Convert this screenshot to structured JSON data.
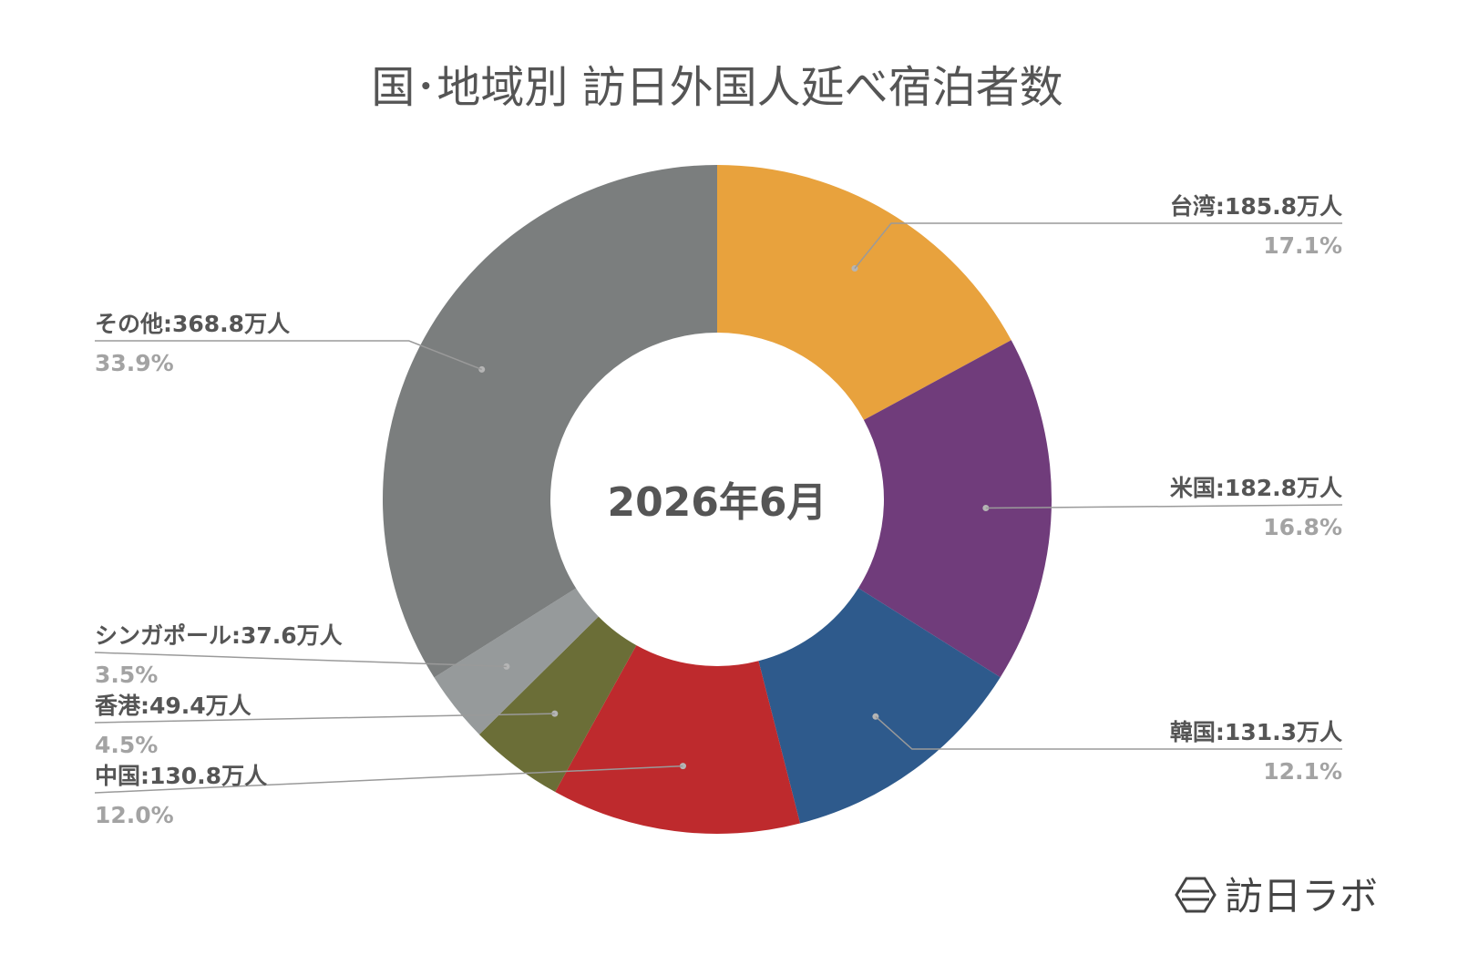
{
  "chart_data": {
    "type": "pie",
    "title": "国･地域別 訪日外国人延べ宿泊者数",
    "center_label": "2026年6月",
    "slices": [
      {
        "name": "台湾",
        "value_label": "185.8万人",
        "value": 185.8,
        "percent": "17.1%",
        "color": "#E8A23D"
      },
      {
        "name": "米国",
        "value_label": "182.8万人",
        "value": 182.8,
        "percent": "16.8%",
        "color": "#703C7B"
      },
      {
        "name": "韓国",
        "value_label": "131.3万人",
        "value": 131.3,
        "percent": "12.1%",
        "color": "#2E5A8C"
      },
      {
        "name": "中国",
        "value_label": "130.8万人",
        "value": 130.8,
        "percent": "12.0%",
        "color": "#BE2A2D"
      },
      {
        "name": "香港",
        "value_label": "49.4万人",
        "value": 49.4,
        "percent": "4.5%",
        "color": "#6B6E37"
      },
      {
        "name": "シンガポール",
        "value_label": "37.6万人",
        "value": 37.6,
        "percent": "3.5%",
        "color": "#969A9B"
      },
      {
        "name": "その他",
        "value_label": "368.8万人",
        "value": 368.8,
        "percent": "33.9%",
        "color": "#7B7E7E"
      }
    ]
  },
  "brand": {
    "text": "訪日ラボ",
    "icon": "hexagon-logo-icon"
  }
}
